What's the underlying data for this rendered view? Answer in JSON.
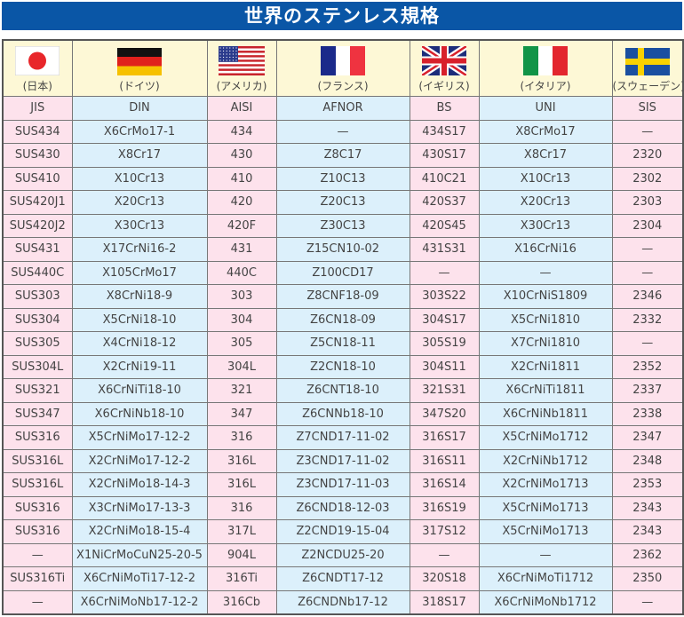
{
  "title": "世界のステンレス規格",
  "countries": [
    "(日本)",
    "(ドイツ)",
    "(アメリカ)",
    "(フランス)",
    "(イギリス)",
    "(イタリア)",
    "(スウェーデン)"
  ],
  "flags": [
    "japan-flag",
    "germany-flag",
    "usa-flag",
    "france-flag",
    "uk-flag",
    "italy-flag",
    "sweden-flag"
  ],
  "colors": {
    "title_bg": "#0a56a6",
    "pink_column": "#fde2ec",
    "blue_column": "#dcf0fb",
    "flag_row": "#fdf8d6"
  },
  "headers": [
    "JIS",
    "DIN",
    "AISI",
    "AFNOR",
    "BS",
    "UNI",
    "SIS"
  ],
  "rows": [
    [
      "SUS434",
      "X6CrMo17-1",
      "434",
      "—",
      "434S17",
      "X8CrMo17",
      "—"
    ],
    [
      "SUS430",
      "X8Cr17",
      "430",
      "Z8C17",
      "430S17",
      "X8Cr17",
      "2320"
    ],
    [
      "SUS410",
      "X10Cr13",
      "410",
      "Z10C13",
      "410C21",
      "X10Cr13",
      "2302"
    ],
    [
      "SUS420J1",
      "X20Cr13",
      "420",
      "Z20C13",
      "420S37",
      "X20Cr13",
      "2303"
    ],
    [
      "SUS420J2",
      "X30Cr13",
      "420F",
      "Z30C13",
      "420S45",
      "X30Cr13",
      "2304"
    ],
    [
      "SUS431",
      "X17CrNi16-2",
      "431",
      "Z15CN10-02",
      "431S31",
      "X16CrNi16",
      "—"
    ],
    [
      "SUS440C",
      "X105CrMo17",
      "440C",
      "Z100CD17",
      "—",
      "—",
      "—"
    ],
    [
      "SUS303",
      "X8CrNi18-9",
      "303",
      "Z8CNF18-09",
      "303S22",
      "X10CrNiS1809",
      "2346"
    ],
    [
      "SUS304",
      "X5CrNi18-10",
      "304",
      "Z6CN18-09",
      "304S17",
      "X5CrNi1810",
      "2332"
    ],
    [
      "SUS305",
      "X4CrNi18-12",
      "305",
      "Z5CN18-11",
      "305S19",
      "X7CrNi1810",
      "—"
    ],
    [
      "SUS304L",
      "X2CrNi19-11",
      "304L",
      "Z2CN18-10",
      "304S11",
      "X2CrNi1811",
      "2352"
    ],
    [
      "SUS321",
      "X6CrNiTi18-10",
      "321",
      "Z6CNT18-10",
      "321S31",
      "X6CrNiTi1811",
      "2337"
    ],
    [
      "SUS347",
      "X6CrNiNb18-10",
      "347",
      "Z6CNNb18-10",
      "347S20",
      "X6CrNiNb1811",
      "2338"
    ],
    [
      "SUS316",
      "X5CrNiMo17-12-2",
      "316",
      "Z7CND17-11-02",
      "316S17",
      "X5CrNiMo1712",
      "2347"
    ],
    [
      "SUS316L",
      "X2CrNiMo17-12-2",
      "316L",
      "Z3CND17-11-02",
      "316S11",
      "X2CrNiNb1712",
      "2348"
    ],
    [
      "SUS316L",
      "X2CrNiMo18-14-3",
      "316L",
      "Z3CND17-11-03",
      "316S14",
      "X2CrNiMo1713",
      "2353"
    ],
    [
      "SUS316",
      "X3CrNiMo17-13-3",
      "316",
      "Z6CND18-12-03",
      "316S19",
      "X5CrNiMo1713",
      "2343"
    ],
    [
      "SUS316",
      "X2CrNiMo18-15-4",
      "317L",
      "Z2CND19-15-04",
      "317S12",
      "X5CrNiMo1713",
      "2343"
    ],
    [
      "—",
      "X1NiCrMoCuN25-20-5",
      "904L",
      "Z2NCDU25-20",
      "—",
      "—",
      "2362"
    ],
    [
      "SUS316Ti",
      "X6CrNiMoTi17-12-2",
      "316Ti",
      "Z6CNDT17-12",
      "320S18",
      "X6CrNiMoTi1712",
      "2350"
    ],
    [
      "—",
      "X6CrNiMoNb17-12-2",
      "316Cb",
      "Z6CNDNb17-12",
      "318S17",
      "X6CrNiMoNb1712",
      "—"
    ]
  ]
}
